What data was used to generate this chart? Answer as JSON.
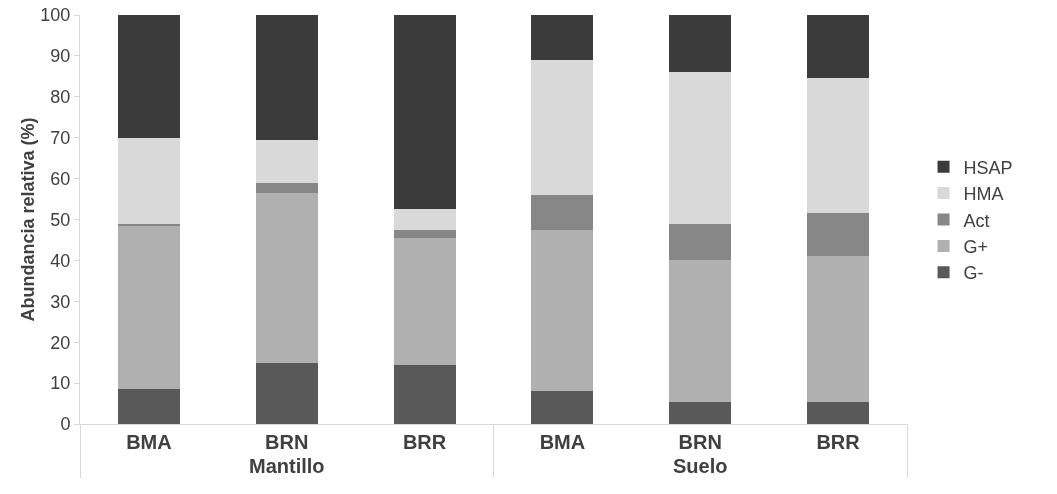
{
  "chart_data": {
    "type": "bar",
    "stacked": true,
    "ylabel": "Abundancia relativa (%)",
    "categories": [
      "BMA",
      "BRN",
      "BRR",
      "BMA",
      "BRN",
      "BRR"
    ],
    "annotations": [
      "Mantillo",
      "Suelo"
    ],
    "series": [
      {
        "name": "G-",
        "color": "#595959",
        "values": [
          8.5,
          15,
          14.5,
          8,
          5.5,
          5.5
        ]
      },
      {
        "name": "G+",
        "color": "#b0b0b0",
        "values": [
          40,
          41.5,
          31,
          39.5,
          34.5,
          35.5
        ]
      },
      {
        "name": "Act",
        "color": "#878787",
        "values": [
          0.5,
          2.5,
          2,
          8.5,
          9,
          10.5
        ]
      },
      {
        "name": "HMA",
        "color": "#d9d9d9",
        "values": [
          21,
          10.5,
          5,
          33,
          37,
          33
        ]
      },
      {
        "name": "HSAP",
        "color": "#3b3b3b",
        "values": [
          30,
          30.5,
          47.5,
          11,
          14,
          15.5
        ]
      }
    ],
    "ylim": [
      0,
      100
    ],
    "yticks": [
      0,
      10,
      20,
      30,
      40,
      50,
      60,
      70,
      80,
      90,
      100
    ],
    "grid": false,
    "legend": "right"
  }
}
